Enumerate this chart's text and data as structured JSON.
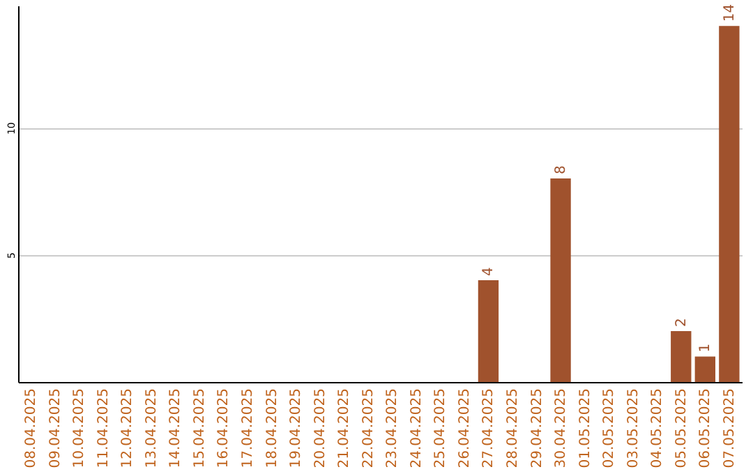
{
  "chart_data": {
    "type": "bar",
    "categories": [
      "08.04.2025",
      "09.04.2025",
      "10.04.2025",
      "11.04.2025",
      "12.04.2025",
      "13.04.2025",
      "14.04.2025",
      "15.04.2025",
      "16.04.2025",
      "17.04.2025",
      "18.04.2025",
      "19.04.2025",
      "20.04.2025",
      "21.04.2025",
      "22.04.2025",
      "23.04.2025",
      "24.04.2025",
      "25.04.2025",
      "26.04.2025",
      "27.04.2025",
      "28.04.2025",
      "29.04.2025",
      "30.04.2025",
      "01.05.2025",
      "02.05.2025",
      "03.05.2025",
      "04.05.2025",
      "05.05.2025",
      "06.05.2025",
      "07.05.2025"
    ],
    "values": [
      0,
      0,
      0,
      0,
      0,
      0,
      0,
      0,
      0,
      0,
      0,
      0,
      0,
      0,
      0,
      0,
      0,
      0,
      0,
      4,
      0,
      0,
      8,
      0,
      0,
      0,
      0,
      2,
      1,
      14
    ],
    "value_labels": [
      null,
      null,
      null,
      null,
      null,
      null,
      null,
      null,
      null,
      null,
      null,
      null,
      null,
      null,
      null,
      null,
      null,
      null,
      null,
      "4",
      null,
      null,
      "8",
      null,
      null,
      null,
      null,
      "2",
      "1",
      "14"
    ],
    "color": "#a0522d",
    "ylim": [
      0,
      14.8
    ],
    "yticks": [
      5,
      10
    ],
    "grid": "y"
  }
}
